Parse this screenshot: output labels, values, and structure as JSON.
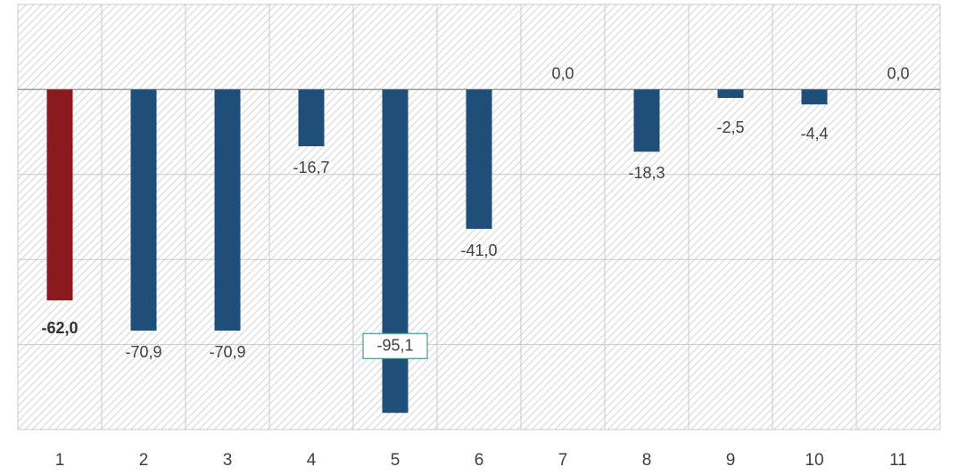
{
  "chart_data": {
    "type": "bar",
    "categories": [
      "1",
      "2",
      "3",
      "4",
      "5",
      "6",
      "7",
      "8",
      "9",
      "10",
      "11"
    ],
    "values": [
      -62.0,
      -70.9,
      -70.9,
      -16.7,
      -95.1,
      -41.0,
      0.0,
      -18.3,
      -2.5,
      -4.4,
      0.0
    ],
    "data_labels": [
      "-62,0",
      "-70,9",
      "-70,9",
      "-16,7",
      "-95,1",
      "-41,0",
      "0,0",
      "-18,3",
      "-2,5",
      "-4,4",
      "0,0"
    ],
    "highlighted_index": 0,
    "boxed_label_index": 4,
    "ylim": [
      -100,
      25
    ],
    "title": "",
    "xlabel": "",
    "ylabel": "",
    "grid": true,
    "legend": "none",
    "colors": {
      "bar": "#1f4e79",
      "highlight_bar": "#8b1a1e",
      "grid": "#c8c8c8",
      "hatch": "#d4d4d4",
      "zero_line": "#a0a0a0",
      "label_box_border": "#4a9a96",
      "text": "#404040"
    }
  }
}
